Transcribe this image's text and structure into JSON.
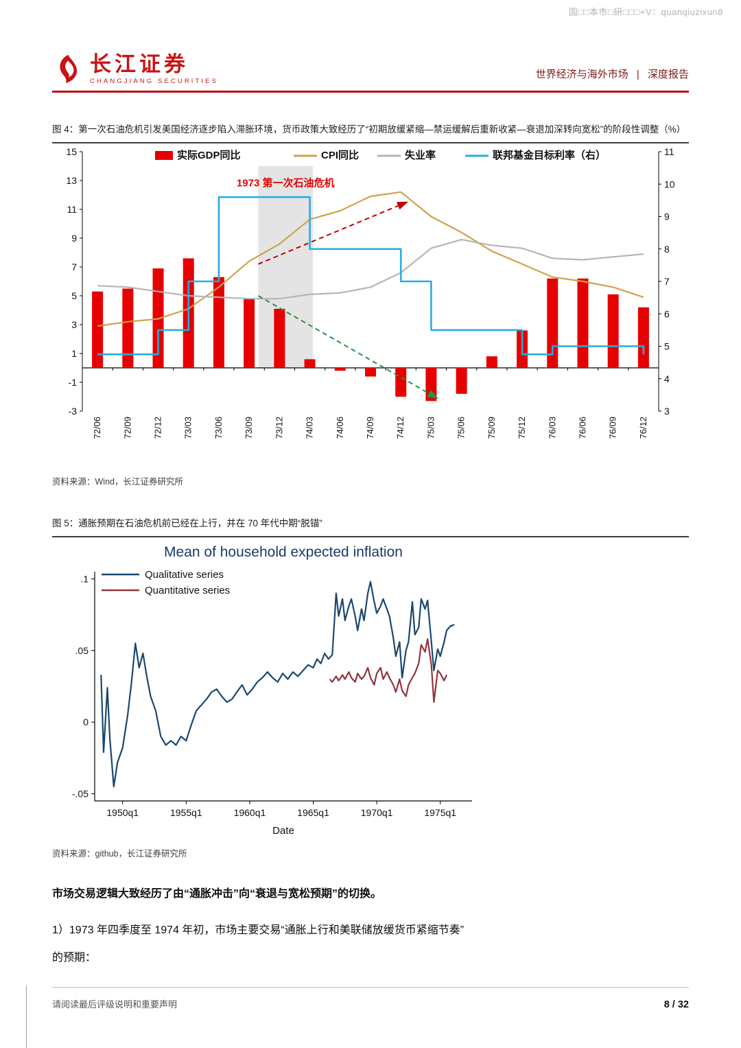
{
  "watermark": "国□□本市□研□□□+V：quanqiuzixun8",
  "header": {
    "logo_cn": "长江证券",
    "logo_en": "CHANGJIANG SECURITIES",
    "section": "世界经济与海外市场",
    "divider": "|",
    "report_type": "深度报告"
  },
  "figure4": {
    "caption": "图 4：第一次石油危机引发美国经济逐步陷入滞胀环境，货币政策大致经历了“初期放缓紧缩—禁运缓解后重新收紧—衰退加深转向宽松”的阶段性调整（%）",
    "source": "资料来源：Wind，长江证券研究所"
  },
  "figure5": {
    "caption": "图 5：通胀预期在石油危机前已经在上行，并在 70 年代中期“脱锚”",
    "source": "资料来源：github，长江证券研究所"
  },
  "body": {
    "para1": "市场交易逻辑大致经历了由“通胀冲击”向“衰退与宽松预期”的切换。",
    "para2": "1）1973 年四季度至 1974 年初，市场主要交易“通胀上行和美联储放缓货币紧缩节奏”",
    "para2_cont": "的预期："
  },
  "footer": {
    "disclaimer": "请阅读最后评级说明和重要声明",
    "page": "8 / 32"
  },
  "chart_data": [
    {
      "id": "fig4",
      "type": "bar",
      "subtype": "bar+line combo, dual axis",
      "categories": [
        "72/06",
        "72/09",
        "72/12",
        "73/03",
        "73/06",
        "73/09",
        "73/12",
        "74/03",
        "74/06",
        "74/09",
        "74/12",
        "75/03",
        "75/06",
        "75/09",
        "75/12",
        "76/03",
        "76/06",
        "76/09",
        "76/12"
      ],
      "series": [
        {
          "name": "实际GDP同比",
          "type": "bar",
          "axis": "left",
          "color": "#e60000",
          "values": [
            5.3,
            5.5,
            6.9,
            7.6,
            6.3,
            4.8,
            4.1,
            0.6,
            -0.2,
            -0.6,
            -2.0,
            -2.3,
            -1.8,
            0.8,
            2.6,
            6.2,
            6.2,
            5.1,
            4.2
          ]
        },
        {
          "name": "CPI同比",
          "type": "line",
          "axis": "left",
          "color": "#d0a24a",
          "values": [
            2.9,
            3.2,
            3.4,
            4.1,
            5.6,
            7.4,
            8.6,
            10.3,
            10.9,
            11.9,
            12.2,
            10.5,
            9.4,
            8.1,
            7.2,
            6.3,
            6.0,
            5.6,
            4.9
          ]
        },
        {
          "name": "失业率",
          "type": "line",
          "axis": "left",
          "color": "#b5b5b5",
          "values": [
            5.7,
            5.6,
            5.3,
            5.0,
            4.9,
            4.8,
            4.8,
            5.1,
            5.2,
            5.6,
            6.6,
            8.3,
            8.9,
            8.5,
            8.3,
            7.6,
            7.5,
            7.7,
            7.9
          ]
        },
        {
          "name": "联邦基金目标利率（右）",
          "type": "line",
          "step": true,
          "axis": "right",
          "color": "#29abe2",
          "values": [
            4.75,
            4.75,
            5.5,
            7.0,
            9.6,
            9.6,
            9.6,
            8.0,
            8.0,
            8.0,
            7.0,
            5.5,
            5.5,
            5.5,
            4.75,
            5.0,
            5.0,
            5.0,
            4.75
          ]
        }
      ],
      "left_axis": {
        "min": -3,
        "max": 15,
        "ticks": [
          15,
          13,
          11,
          9,
          7,
          5,
          3,
          1,
          -1,
          -3
        ]
      },
      "right_axis": {
        "min": 3,
        "max": 11,
        "ticks": [
          11,
          10,
          9,
          8,
          7,
          6,
          5,
          4,
          3
        ]
      },
      "shaded_region": {
        "from_index": 5.3,
        "to_index": 7.1,
        "top_value": 14,
        "color": "#e4e4e4"
      },
      "annotation": {
        "text": "1973 第一次石油危机",
        "color": "#e60000",
        "x_index": 6.2,
        "y_value": 12.6
      },
      "arrows": [
        {
          "color": "#c00000",
          "from": [
            5.3,
            7.2
          ],
          "to": [
            10.2,
            11.5
          ]
        },
        {
          "color": "#2e9044",
          "from": [
            5.3,
            5.0
          ],
          "to": [
            11.2,
            -2.1
          ]
        }
      ],
      "grid": false,
      "legend_position": "top"
    },
    {
      "id": "fig5",
      "type": "line",
      "title": "Mean of household expected inflation",
      "xlabel": "Date",
      "xlim": [
        1947.8,
        1977.5
      ],
      "ylim": [
        -0.055,
        0.105
      ],
      "x_ticks": [
        1950,
        1955,
        1960,
        1965,
        1970,
        1975
      ],
      "x_tick_labels": [
        "1950q1",
        "1955q1",
        "1960q1",
        "1965q1",
        "1970q1",
        "1975q1"
      ],
      "y_ticks": [
        -0.05,
        0,
        0.05,
        0.1
      ],
      "y_tick_labels": [
        "-.05",
        "0",
        ".05",
        ".1"
      ],
      "grid": false,
      "legend_position": "top-left",
      "series": [
        {
          "name": "Qualitative series",
          "color": "#1a476f",
          "points": [
            [
              1948.3,
              0.033
            ],
            [
              1948.5,
              -0.021
            ],
            [
              1948.8,
              0.024
            ],
            [
              1949.0,
              -0.012
            ],
            [
              1949.3,
              -0.045
            ],
            [
              1949.6,
              -0.028
            ],
            [
              1950.0,
              -0.018
            ],
            [
              1950.4,
              0.005
            ],
            [
              1950.7,
              0.028
            ],
            [
              1951.0,
              0.055
            ],
            [
              1951.3,
              0.038
            ],
            [
              1951.6,
              0.048
            ],
            [
              1951.9,
              0.032
            ],
            [
              1952.2,
              0.018
            ],
            [
              1952.6,
              0.008
            ],
            [
              1953.0,
              -0.01
            ],
            [
              1953.4,
              -0.016
            ],
            [
              1953.8,
              -0.013
            ],
            [
              1954.2,
              -0.016
            ],
            [
              1954.6,
              -0.01
            ],
            [
              1955.0,
              -0.013
            ],
            [
              1955.4,
              -0.002
            ],
            [
              1955.8,
              0.008
            ],
            [
              1956.2,
              0.012
            ],
            [
              1956.6,
              0.016
            ],
            [
              1957.0,
              0.021
            ],
            [
              1957.4,
              0.023
            ],
            [
              1957.8,
              0.018
            ],
            [
              1958.2,
              0.014
            ],
            [
              1958.6,
              0.016
            ],
            [
              1959.0,
              0.021
            ],
            [
              1959.4,
              0.026
            ],
            [
              1959.8,
              0.019
            ],
            [
              1960.2,
              0.023
            ],
            [
              1960.6,
              0.028
            ],
            [
              1961.0,
              0.031
            ],
            [
              1961.4,
              0.035
            ],
            [
              1961.8,
              0.031
            ],
            [
              1962.2,
              0.028
            ],
            [
              1962.6,
              0.034
            ],
            [
              1963.0,
              0.03
            ],
            [
              1963.4,
              0.035
            ],
            [
              1963.8,
              0.032
            ],
            [
              1964.2,
              0.036
            ],
            [
              1964.6,
              0.04
            ],
            [
              1965.0,
              0.038
            ],
            [
              1965.3,
              0.044
            ],
            [
              1965.6,
              0.041
            ],
            [
              1965.9,
              0.048
            ],
            [
              1966.2,
              0.044
            ],
            [
              1966.5,
              0.047
            ],
            [
              1966.8,
              0.09
            ],
            [
              1967.0,
              0.074
            ],
            [
              1967.3,
              0.086
            ],
            [
              1967.5,
              0.071
            ],
            [
              1967.8,
              0.081
            ],
            [
              1968.0,
              0.086
            ],
            [
              1968.3,
              0.074
            ],
            [
              1968.5,
              0.064
            ],
            [
              1968.8,
              0.079
            ],
            [
              1969.0,
              0.071
            ],
            [
              1969.3,
              0.09
            ],
            [
              1969.5,
              0.098
            ],
            [
              1969.8,
              0.084
            ],
            [
              1970.0,
              0.076
            ],
            [
              1970.3,
              0.081
            ],
            [
              1970.5,
              0.086
            ],
            [
              1970.8,
              0.079
            ],
            [
              1971.0,
              0.074
            ],
            [
              1971.3,
              0.059
            ],
            [
              1971.5,
              0.046
            ],
            [
              1971.8,
              0.056
            ],
            [
              1972.0,
              0.031
            ],
            [
              1972.3,
              0.05
            ],
            [
              1972.5,
              0.056
            ],
            [
              1972.8,
              0.084
            ],
            [
              1973.0,
              0.061
            ],
            [
              1973.3,
              0.066
            ],
            [
              1973.5,
              0.086
            ],
            [
              1973.8,
              0.079
            ],
            [
              1974.0,
              0.085
            ],
            [
              1974.3,
              0.056
            ],
            [
              1974.5,
              0.036
            ],
            [
              1974.8,
              0.051
            ],
            [
              1975.0,
              0.046
            ],
            [
              1975.3,
              0.056
            ],
            [
              1975.5,
              0.064
            ],
            [
              1975.8,
              0.067
            ],
            [
              1976.1,
              0.068
            ]
          ]
        },
        {
          "name": "Quantitative series",
          "color": "#90353b",
          "points": [
            [
              1966.3,
              0.03
            ],
            [
              1966.5,
              0.028
            ],
            [
              1966.8,
              0.032
            ],
            [
              1967.0,
              0.029
            ],
            [
              1967.3,
              0.033
            ],
            [
              1967.5,
              0.03
            ],
            [
              1967.8,
              0.035
            ],
            [
              1968.0,
              0.031
            ],
            [
              1968.3,
              0.028
            ],
            [
              1968.5,
              0.034
            ],
            [
              1968.8,
              0.03
            ],
            [
              1969.0,
              0.032
            ],
            [
              1969.3,
              0.038
            ],
            [
              1969.5,
              0.031
            ],
            [
              1969.8,
              0.026
            ],
            [
              1970.0,
              0.034
            ],
            [
              1970.3,
              0.038
            ],
            [
              1970.5,
              0.03
            ],
            [
              1970.8,
              0.035
            ],
            [
              1971.0,
              0.031
            ],
            [
              1971.3,
              0.026
            ],
            [
              1971.5,
              0.021
            ],
            [
              1971.8,
              0.03
            ],
            [
              1972.0,
              0.022
            ],
            [
              1972.3,
              0.018
            ],
            [
              1972.5,
              0.026
            ],
            [
              1972.8,
              0.031
            ],
            [
              1973.0,
              0.034
            ],
            [
              1973.3,
              0.041
            ],
            [
              1973.5,
              0.054
            ],
            [
              1973.8,
              0.049
            ],
            [
              1974.0,
              0.058
            ],
            [
              1974.3,
              0.04
            ],
            [
              1974.5,
              0.014
            ],
            [
              1974.8,
              0.036
            ],
            [
              1975.0,
              0.034
            ],
            [
              1975.3,
              0.029
            ],
            [
              1975.5,
              0.033
            ]
          ]
        }
      ]
    }
  ]
}
